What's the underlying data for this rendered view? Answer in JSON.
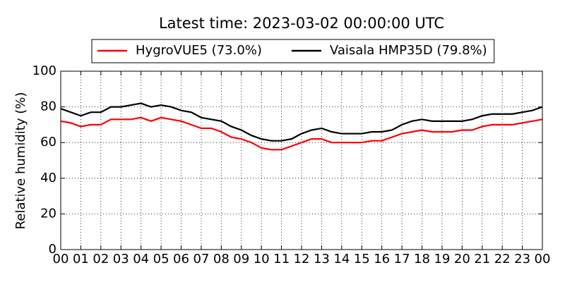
{
  "chart_data": {
    "type": "line",
    "title": "Latest time: 2023-03-02 00:00:00 UTC",
    "y_label": "Relative humidity (%)",
    "x": [
      0,
      0.5,
      1,
      1.5,
      2,
      2.5,
      3,
      3.5,
      4,
      4.5,
      5,
      5.5,
      6,
      6.5,
      7,
      7.5,
      8,
      8.5,
      9,
      9.5,
      10,
      10.5,
      11,
      11.5,
      12,
      12.5,
      13,
      13.5,
      14,
      14.5,
      15,
      15.5,
      16,
      16.5,
      17,
      17.5,
      18,
      18.5,
      19,
      19.5,
      20,
      20.5,
      21,
      21.5,
      22,
      22.5,
      23,
      23.5,
      24
    ],
    "series": [
      {
        "name": "HygroVUE5 (73.0%)",
        "color": "#ff0000",
        "values": [
          72,
          71,
          69,
          70,
          70,
          73,
          73,
          73,
          74,
          72,
          74,
          73,
          72,
          70,
          68,
          68,
          66,
          63,
          62,
          60,
          57,
          56,
          56,
          58,
          60,
          62,
          62,
          60,
          60,
          60,
          60,
          61,
          61,
          63,
          65,
          66,
          67,
          66,
          66,
          66,
          67,
          67,
          69,
          70,
          70,
          70,
          71,
          72,
          73
        ]
      },
      {
        "name": "Vaisala HMP35D (79.8%)",
        "color": "#000000",
        "values": [
          79,
          77,
          75,
          77,
          77,
          80,
          80,
          81,
          82,
          80,
          81,
          80,
          78,
          77,
          74,
          73,
          72,
          69,
          67,
          64,
          62,
          61,
          61,
          62,
          65,
          67,
          68,
          66,
          65,
          65,
          65,
          66,
          66,
          67,
          70,
          72,
          73,
          72,
          72,
          72,
          72,
          73,
          75,
          76,
          76,
          76,
          77,
          78,
          80
        ]
      }
    ],
    "xlim": [
      0,
      24
    ],
    "xticks": [
      {
        "value": 0,
        "label": "00"
      },
      {
        "value": 1,
        "label": "01"
      },
      {
        "value": 2,
        "label": "02"
      },
      {
        "value": 3,
        "label": "03"
      },
      {
        "value": 4,
        "label": "04"
      },
      {
        "value": 5,
        "label": "05"
      },
      {
        "value": 6,
        "label": "06"
      },
      {
        "value": 7,
        "label": "07"
      },
      {
        "value": 8,
        "label": "08"
      },
      {
        "value": 9,
        "label": "09"
      },
      {
        "value": 10,
        "label": "10"
      },
      {
        "value": 11,
        "label": "11"
      },
      {
        "value": 12,
        "label": "12"
      },
      {
        "value": 13,
        "label": "13"
      },
      {
        "value": 14,
        "label": "14"
      },
      {
        "value": 15,
        "label": "15"
      },
      {
        "value": 16,
        "label": "16"
      },
      {
        "value": 17,
        "label": "17"
      },
      {
        "value": 18,
        "label": "18"
      },
      {
        "value": 19,
        "label": "19"
      },
      {
        "value": 20,
        "label": "20"
      },
      {
        "value": 21,
        "label": "21"
      },
      {
        "value": 22,
        "label": "22"
      },
      {
        "value": 23,
        "label": "23"
      },
      {
        "value": 24,
        "label": "00"
      }
    ],
    "ylim": [
      0,
      100
    ],
    "yticks": [
      0,
      20,
      40,
      60,
      80,
      100
    ],
    "grid": true,
    "legend": "top"
  }
}
